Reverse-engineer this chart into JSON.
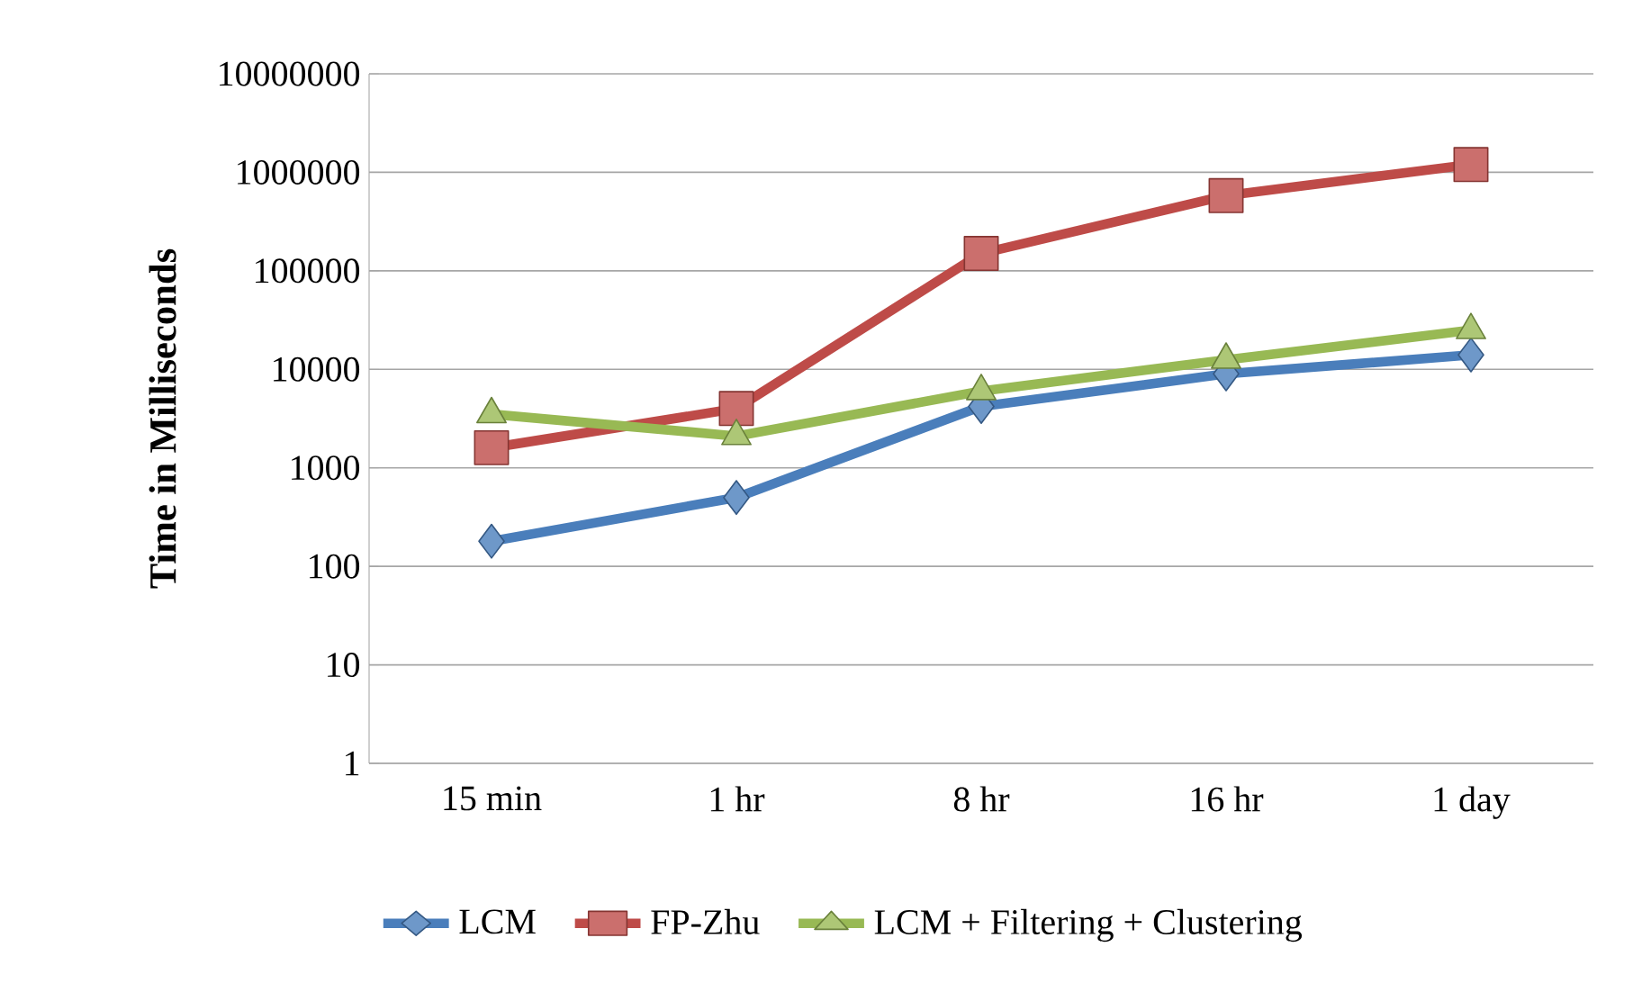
{
  "chart_data": {
    "type": "line",
    "ylabel": "Time in Milliseconds",
    "categories": [
      "15 min",
      "1 hr",
      "8 hr",
      "16 hr",
      "1 day"
    ],
    "log": "y",
    "ylim": [
      1,
      10000000
    ],
    "yticks": [
      1,
      10,
      100,
      1000,
      10000,
      100000,
      1000000,
      10000000
    ],
    "grid": "y",
    "legend": "bottom",
    "line_style": "solid",
    "series": [
      {
        "name": "LCM",
        "color": "#4a7ebb",
        "marker": "diamond",
        "values": [
          180,
          500,
          4200,
          9000,
          14000
        ]
      },
      {
        "name": "FP-Zhu",
        "color": "#be4b48",
        "marker": "square",
        "values": [
          1600,
          4000,
          150000,
          580000,
          1200000
        ]
      },
      {
        "name": "LCM + Filtering + Clustering",
        "color": "#98b954",
        "marker": "triangle",
        "values": [
          3500,
          2100,
          6000,
          12500,
          25000
        ]
      }
    ]
  }
}
